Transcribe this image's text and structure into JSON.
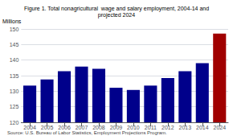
{
  "chart_data": {
    "type": "bar",
    "title": "Figure 1. Total nonagricultural  wage and salary employment, 2004-14 and",
    "subtitle": "projected 2024",
    "ylabel": "Millions",
    "source": "Source: U.S. Bureau of Labor Statistics, Employment Projections Program.",
    "categories": [
      "2004",
      "2005",
      "2006",
      "2007",
      "2008",
      "2009",
      "2010",
      "2011",
      "2012",
      "2013",
      "2014",
      "2024"
    ],
    "values": [
      131.8,
      133.8,
      136.4,
      137.9,
      137.2,
      131.1,
      130.4,
      131.8,
      134.2,
      136.4,
      139.0,
      148.5
    ],
    "colors": [
      "#00008B",
      "#00008B",
      "#00008B",
      "#00008B",
      "#00008B",
      "#00008B",
      "#00008B",
      "#00008B",
      "#00008B",
      "#00008B",
      "#00008B",
      "#A00000"
    ],
    "ylim": [
      120,
      150
    ],
    "yticks": [
      120,
      125,
      130,
      135,
      140,
      145,
      150
    ],
    "grid": true
  }
}
